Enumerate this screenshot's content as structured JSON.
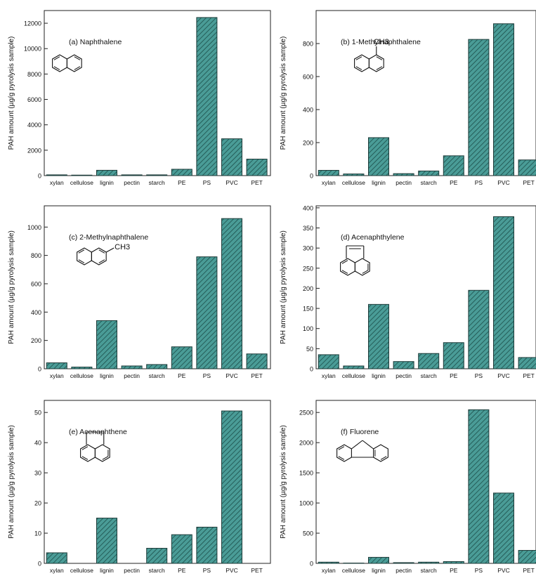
{
  "figure": {
    "ylabel": "PAH amount (µg/g pyrolysis sample)",
    "bar_color": "#4a9c97",
    "hatch_color": "#1c4e4a"
  },
  "chart_data": [
    {
      "type": "bar",
      "title": "(a) Naphthalene",
      "molecule": "naphthalene",
      "ylabel": "PAH amount (µg/g pyrolysis sample)",
      "categories": [
        "xylan",
        "cellulose",
        "lignin",
        "pectin",
        "starch",
        "PE",
        "PS",
        "PVC",
        "PET"
      ],
      "values": [
        60,
        40,
        420,
        60,
        60,
        500,
        12450,
        2900,
        1300
      ],
      "yticks": [
        0,
        2000,
        4000,
        6000,
        8000,
        10000,
        12000
      ],
      "ylim": [
        0,
        13000
      ]
    },
    {
      "type": "bar",
      "title": "(b) 1-Methylnaphthalene",
      "molecule": "1-methylnaphthalene",
      "substituent": "CH3",
      "ylabel": "PAH amount (µg/g pyrolysis sample)",
      "categories": [
        "xylan",
        "cellulose",
        "lignin",
        "pectin",
        "starch",
        "PE",
        "PS",
        "PVC",
        "PET"
      ],
      "values": [
        32,
        10,
        230,
        12,
        28,
        120,
        825,
        920,
        95
      ],
      "yticks": [
        0,
        200,
        400,
        600,
        800
      ],
      "ylim": [
        0,
        1000
      ]
    },
    {
      "type": "bar",
      "title": "(c) 2-Methylnaphthalene",
      "molecule": "2-methylnaphthalene",
      "substituent": "CH3",
      "ylabel": "PAH amount (µg/g pyrolysis sample)",
      "categories": [
        "xylan",
        "cellulose",
        "lignin",
        "pectin",
        "starch",
        "PE",
        "PS",
        "PVC",
        "PET"
      ],
      "values": [
        42,
        12,
        340,
        20,
        30,
        155,
        790,
        1060,
        105
      ],
      "yticks": [
        0,
        200,
        400,
        600,
        800,
        1000
      ],
      "ylim": [
        0,
        1150
      ]
    },
    {
      "type": "bar",
      "title": "(d) Acenaphthylene",
      "molecule": "acenaphthylene",
      "ylabel": "PAH amount (µg/g pyrolysis sample)",
      "categories": [
        "xylan",
        "cellulose",
        "lignin",
        "pectin",
        "starch",
        "PE",
        "PS",
        "PVC",
        "PET"
      ],
      "values": [
        35,
        7,
        160,
        18,
        38,
        65,
        195,
        378,
        28
      ],
      "yticks": [
        0,
        50,
        100,
        150,
        200,
        250,
        300,
        350,
        400
      ],
      "ylim": [
        0,
        405
      ]
    },
    {
      "type": "bar",
      "title": "(e) Acenaphthene",
      "molecule": "acenaphthene",
      "ylabel": "PAH amount (µg/g pyrolysis sample)",
      "categories": [
        "xylan",
        "cellulose",
        "lignin",
        "pectin",
        "starch",
        "PE",
        "PS",
        "PVC",
        "PET"
      ],
      "values": [
        3.5,
        0,
        15,
        0,
        5,
        9.5,
        12,
        50.5,
        0
      ],
      "yticks": [
        0,
        10,
        20,
        30,
        40,
        50
      ],
      "ylim": [
        0,
        54
      ]
    },
    {
      "type": "bar",
      "title": "(f) Fluorene",
      "molecule": "fluorene",
      "ylabel": "PAH amount (µg/g pyrolysis sample)",
      "categories": [
        "xylan",
        "cellulose",
        "lignin",
        "pectin",
        "starch",
        "PE",
        "PS",
        "PVC",
        "PET"
      ],
      "values": [
        20,
        5,
        100,
        12,
        20,
        30,
        2545,
        1165,
        215
      ],
      "yticks": [
        0,
        500,
        1000,
        1500,
        2000,
        2500
      ],
      "ylim": [
        0,
        2700
      ]
    }
  ]
}
